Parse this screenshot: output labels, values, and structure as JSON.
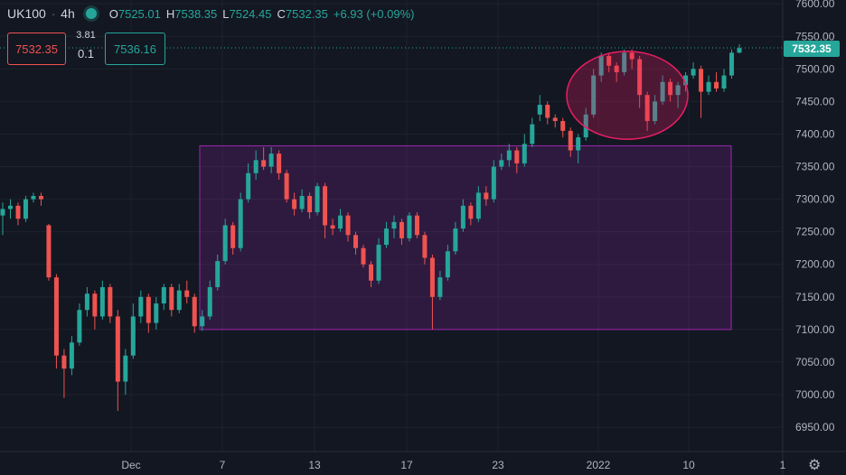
{
  "header": {
    "symbol": "UK100",
    "interval": "4h",
    "open_label": "O",
    "open": "7525.01",
    "high_label": "H",
    "high": "7538.35",
    "low_label": "L",
    "low": "7524.45",
    "close_label": "C",
    "close": "7532.35",
    "change": "+6.93 (+0.09%)"
  },
  "trade": {
    "sell_price": "7532.35",
    "spread": "3.81",
    "lot": "0.1",
    "buy_price": "7536.16"
  },
  "last_price_label": "7532.35",
  "colors": {
    "up": "#26a69a",
    "down": "#ef5350",
    "background": "#131722",
    "rectangle": "#9c27b0",
    "ellipse": "#e91e63"
  },
  "chart_data": {
    "type": "candlestick",
    "ylim": [
      6925,
      7610
    ],
    "y_ticks": [
      "7600.00",
      "7550.00",
      "7500.00",
      "7450.00",
      "7400.00",
      "7350.00",
      "7300.00",
      "7250.00",
      "7200.00",
      "7150.00",
      "7100.00",
      "7050.00",
      "7000.00",
      "6950.00"
    ],
    "x_ticks": [
      "Dec",
      "7",
      "13",
      "17",
      "23",
      "2022",
      "10",
      "1"
    ],
    "x_range": [
      "2021-11-24",
      "2022-01-14"
    ],
    "candles": [
      {
        "o": 7275,
        "c": 7285,
        "h": 7295,
        "l": 7245
      },
      {
        "o": 7285,
        "c": 7290,
        "h": 7300,
        "l": 7270
      },
      {
        "o": 7290,
        "c": 7270,
        "h": 7295,
        "l": 7260
      },
      {
        "o": 7270,
        "c": 7300,
        "h": 7305,
        "l": 7265
      },
      {
        "o": 7300,
        "c": 7305,
        "h": 7310,
        "l": 7295
      },
      {
        "o": 7305,
        "c": 7300,
        "h": 7310,
        "l": 7290
      },
      {
        "o": 7260,
        "c": 7180,
        "h": 7262,
        "l": 7175
      },
      {
        "o": 7180,
        "c": 7060,
        "h": 7185,
        "l": 7040
      },
      {
        "o": 7060,
        "c": 7040,
        "h": 7070,
        "l": 6995
      },
      {
        "o": 7040,
        "c": 7080,
        "h": 7090,
        "l": 7030
      },
      {
        "o": 7080,
        "c": 7130,
        "h": 7140,
        "l": 7075
      },
      {
        "o": 7130,
        "c": 7155,
        "h": 7165,
        "l": 7120
      },
      {
        "o": 7155,
        "c": 7120,
        "h": 7160,
        "l": 7100
      },
      {
        "o": 7120,
        "c": 7165,
        "h": 7175,
        "l": 7115
      },
      {
        "o": 7165,
        "c": 7120,
        "h": 7170,
        "l": 7110
      },
      {
        "o": 7120,
        "c": 7020,
        "h": 7130,
        "l": 6975
      },
      {
        "o": 7020,
        "c": 7060,
        "h": 7070,
        "l": 7000
      },
      {
        "o": 7060,
        "c": 7120,
        "h": 7140,
        "l": 7055
      },
      {
        "o": 7120,
        "c": 7150,
        "h": 7160,
        "l": 7110
      },
      {
        "o": 7150,
        "c": 7110,
        "h": 7155,
        "l": 7095
      },
      {
        "o": 7110,
        "c": 7140,
        "h": 7150,
        "l": 7100
      },
      {
        "o": 7140,
        "c": 7165,
        "h": 7170,
        "l": 7130
      },
      {
        "o": 7165,
        "c": 7130,
        "h": 7170,
        "l": 7120
      },
      {
        "o": 7130,
        "c": 7160,
        "h": 7170,
        "l": 7125
      },
      {
        "o": 7160,
        "c": 7150,
        "h": 7175,
        "l": 7140
      },
      {
        "o": 7150,
        "c": 7105,
        "h": 7155,
        "l": 7095
      },
      {
        "o": 7105,
        "c": 7120,
        "h": 7130,
        "l": 7098
      },
      {
        "o": 7120,
        "c": 7165,
        "h": 7175,
        "l": 7115
      },
      {
        "o": 7165,
        "c": 7205,
        "h": 7215,
        "l": 7160
      },
      {
        "o": 7205,
        "c": 7260,
        "h": 7270,
        "l": 7200
      },
      {
        "o": 7260,
        "c": 7225,
        "h": 7265,
        "l": 7215
      },
      {
        "o": 7225,
        "c": 7300,
        "h": 7310,
        "l": 7220
      },
      {
        "o": 7300,
        "c": 7340,
        "h": 7355,
        "l": 7295
      },
      {
        "o": 7340,
        "c": 7360,
        "h": 7375,
        "l": 7330
      },
      {
        "o": 7360,
        "c": 7350,
        "h": 7380,
        "l": 7345
      },
      {
        "o": 7350,
        "c": 7370,
        "h": 7380,
        "l": 7340
      },
      {
        "o": 7370,
        "c": 7340,
        "h": 7375,
        "l": 7330
      },
      {
        "o": 7340,
        "c": 7300,
        "h": 7345,
        "l": 7295
      },
      {
        "o": 7300,
        "c": 7285,
        "h": 7310,
        "l": 7275
      },
      {
        "o": 7285,
        "c": 7305,
        "h": 7315,
        "l": 7280
      },
      {
        "o": 7305,
        "c": 7280,
        "h": 7310,
        "l": 7270
      },
      {
        "o": 7280,
        "c": 7320,
        "h": 7325,
        "l": 7275
      },
      {
        "o": 7320,
        "c": 7260,
        "h": 7325,
        "l": 7240
      },
      {
        "o": 7260,
        "c": 7255,
        "h": 7270,
        "l": 7245
      },
      {
        "o": 7255,
        "c": 7275,
        "h": 7285,
        "l": 7250
      },
      {
        "o": 7275,
        "c": 7245,
        "h": 7280,
        "l": 7235
      },
      {
        "o": 7245,
        "c": 7225,
        "h": 7250,
        "l": 7215
      },
      {
        "o": 7225,
        "c": 7200,
        "h": 7230,
        "l": 7195
      },
      {
        "o": 7200,
        "c": 7175,
        "h": 7205,
        "l": 7165
      },
      {
        "o": 7175,
        "c": 7230,
        "h": 7240,
        "l": 7170
      },
      {
        "o": 7230,
        "c": 7255,
        "h": 7265,
        "l": 7225
      },
      {
        "o": 7255,
        "c": 7265,
        "h": 7275,
        "l": 7240
      },
      {
        "o": 7265,
        "c": 7240,
        "h": 7270,
        "l": 7230
      },
      {
        "o": 7240,
        "c": 7275,
        "h": 7280,
        "l": 7235
      },
      {
        "o": 7275,
        "c": 7245,
        "h": 7280,
        "l": 7240
      },
      {
        "o": 7245,
        "c": 7210,
        "h": 7250,
        "l": 7200
      },
      {
        "o": 7210,
        "c": 7150,
        "h": 7215,
        "l": 7100
      },
      {
        "o": 7150,
        "c": 7180,
        "h": 7190,
        "l": 7145
      },
      {
        "o": 7180,
        "c": 7220,
        "h": 7230,
        "l": 7175
      },
      {
        "o": 7220,
        "c": 7255,
        "h": 7265,
        "l": 7215
      },
      {
        "o": 7255,
        "c": 7290,
        "h": 7300,
        "l": 7250
      },
      {
        "o": 7290,
        "c": 7270,
        "h": 7295,
        "l": 7260
      },
      {
        "o": 7270,
        "c": 7310,
        "h": 7320,
        "l": 7265
      },
      {
        "o": 7310,
        "c": 7300,
        "h": 7320,
        "l": 7290
      },
      {
        "o": 7300,
        "c": 7350,
        "h": 7360,
        "l": 7295
      },
      {
        "o": 7350,
        "c": 7360,
        "h": 7370,
        "l": 7345
      },
      {
        "o": 7360,
        "c": 7375,
        "h": 7385,
        "l": 7350
      },
      {
        "o": 7375,
        "c": 7355,
        "h": 7380,
        "l": 7340
      },
      {
        "o": 7355,
        "c": 7385,
        "h": 7400,
        "l": 7350
      },
      {
        "o": 7385,
        "c": 7415,
        "h": 7425,
        "l": 7380
      },
      {
        "o": 7430,
        "c": 7445,
        "h": 7460,
        "l": 7420
      },
      {
        "o": 7445,
        "c": 7425,
        "h": 7450,
        "l": 7415
      },
      {
        "o": 7425,
        "c": 7420,
        "h": 7430,
        "l": 7410
      },
      {
        "o": 7420,
        "c": 7405,
        "h": 7425,
        "l": 7395
      },
      {
        "o": 7405,
        "c": 7375,
        "h": 7410,
        "l": 7365
      },
      {
        "o": 7375,
        "c": 7395,
        "h": 7400,
        "l": 7355
      },
      {
        "o": 7395,
        "c": 7430,
        "h": 7440,
        "l": 7390
      },
      {
        "o": 7430,
        "c": 7490,
        "h": 7500,
        "l": 7425
      },
      {
        "o": 7490,
        "c": 7520,
        "h": 7525,
        "l": 7480
      },
      {
        "o": 7520,
        "c": 7505,
        "h": 7525,
        "l": 7495
      },
      {
        "o": 7505,
        "c": 7495,
        "h": 7510,
        "l": 7480
      },
      {
        "o": 7495,
        "c": 7525,
        "h": 7530,
        "l": 7490
      },
      {
        "o": 7525,
        "c": 7515,
        "h": 7530,
        "l": 7500
      },
      {
        "o": 7515,
        "c": 7460,
        "h": 7520,
        "l": 7440
      },
      {
        "o": 7460,
        "c": 7420,
        "h": 7465,
        "l": 7405
      },
      {
        "o": 7420,
        "c": 7450,
        "h": 7460,
        "l": 7415
      },
      {
        "o": 7450,
        "c": 7480,
        "h": 7490,
        "l": 7445
      },
      {
        "o": 7480,
        "c": 7460,
        "h": 7485,
        "l": 7450
      },
      {
        "o": 7460,
        "c": 7475,
        "h": 7480,
        "l": 7440
      },
      {
        "o": 7475,
        "c": 7490,
        "h": 7495,
        "l": 7465
      },
      {
        "o": 7490,
        "c": 7500,
        "h": 7510,
        "l": 7485
      },
      {
        "o": 7500,
        "c": 7465,
        "h": 7505,
        "l": 7425
      },
      {
        "o": 7465,
        "c": 7480,
        "h": 7490,
        "l": 7460
      },
      {
        "o": 7480,
        "c": 7470,
        "h": 7495,
        "l": 7465
      },
      {
        "o": 7470,
        "c": 7490,
        "h": 7500,
        "l": 7465
      },
      {
        "o": 7490,
        "c": 7525,
        "h": 7530,
        "l": 7485
      },
      {
        "o": 7525,
        "c": 7532,
        "h": 7538,
        "l": 7524
      }
    ],
    "annotations": {
      "rectangle": {
        "price_top": 7382,
        "price_bottom": 7100
      },
      "ellipse": {
        "price_top": 7527,
        "price_bottom": 7392
      },
      "last_price": 7532.35
    }
  }
}
